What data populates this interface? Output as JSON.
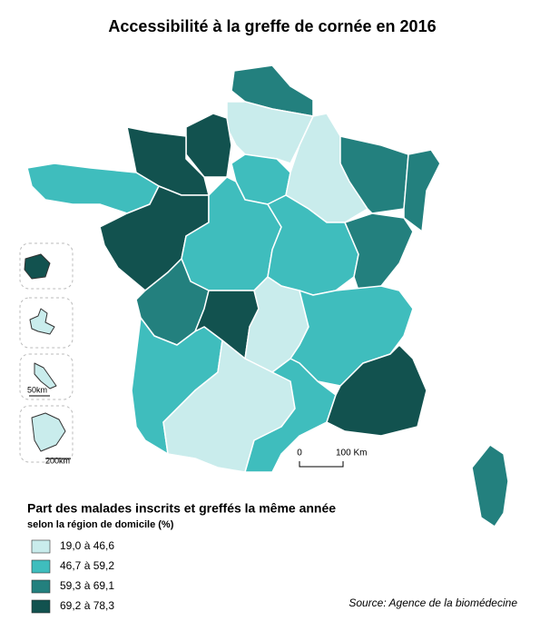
{
  "title": "Accessibilité à la greffe de cornée en 2016",
  "legend": {
    "title": "Part des malades inscrits et greffés la même année",
    "subtitle": "selon la région de domicile (%)",
    "classes": [
      {
        "label": "19,0 à 46,6",
        "color": "#c9ecec"
      },
      {
        "label": "46,7 à 59,2",
        "color": "#3fbdbd"
      },
      {
        "label": "59,3 à 69,1",
        "color": "#23807e"
      },
      {
        "label": "69,2 à 78,3",
        "color": "#12524f"
      }
    ]
  },
  "scale": {
    "start": "0",
    "end": "100 Km"
  },
  "insets": {
    "martinique_scale": "50km",
    "guyane_scale": "200km"
  },
  "source": "Source: Agence de la biomédecine"
}
